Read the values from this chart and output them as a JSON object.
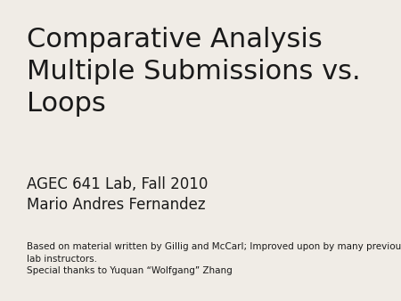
{
  "background_color": "#f0ece6",
  "title_line1": "Comparative Analysis",
  "title_line2": "Multiple Submissions vs.",
  "title_line3": "Loops",
  "subtitle_line1": "AGEC 641 Lab, Fall 2010",
  "subtitle_line2": "Mario Andres Fernandez",
  "footnote_line1": "Based on material written by Gillig and McCarl; Improved upon by many previous",
  "footnote_line2": "lab instructors.",
  "footnote_line3": "Special thanks to Yuquan “Wolfgang” Zhang",
  "title_fontsize": 22,
  "subtitle_fontsize": 12,
  "footnote_fontsize": 7.5,
  "text_color": "#1a1a1a"
}
